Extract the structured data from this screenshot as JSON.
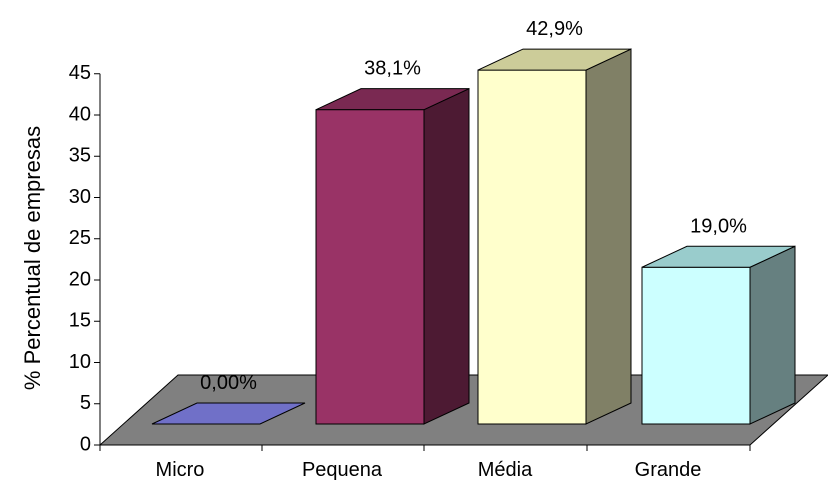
{
  "chart_data": {
    "type": "bar",
    "style": "3d",
    "title": "",
    "xlabel": "",
    "ylabel": "% Percentual de empresas",
    "ylim": [
      0,
      45
    ],
    "yticks": [
      0,
      5,
      10,
      15,
      20,
      25,
      30,
      35,
      40,
      45
    ],
    "grid": false,
    "legend": "none",
    "categories": [
      "Micro",
      "Pequena",
      "Média",
      "Grande"
    ],
    "values": [
      0.0,
      38.1,
      42.9,
      19.0
    ],
    "data_labels": [
      "0,00%",
      "38,1%",
      "42,9%",
      "19,0%"
    ],
    "colors": {
      "floor": "#808080",
      "bars": [
        {
          "front": "#7070C8",
          "top": "#5858A8",
          "side": "#404080"
        },
        {
          "front": "#993366",
          "top": "#7A2952",
          "side": "#4D1A33"
        },
        {
          "front": "#FFFFCC",
          "top": "#CCCC99",
          "side": "#808066"
        },
        {
          "front": "#CCFFFF",
          "top": "#99CCCC",
          "side": "#668080"
        }
      ]
    }
  }
}
